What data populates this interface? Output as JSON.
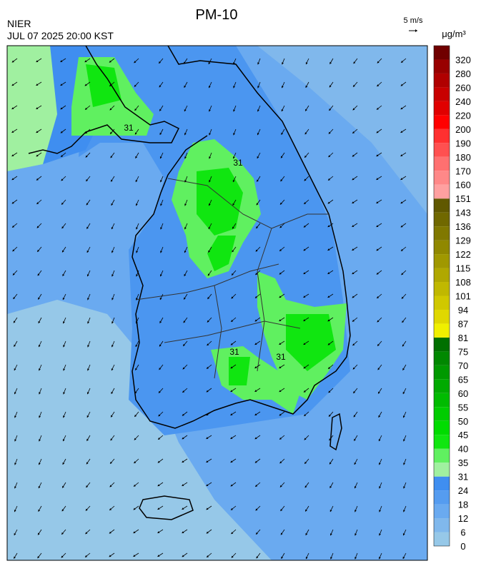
{
  "header": {
    "title": "PM-10",
    "agency": "NIER",
    "timestamp": "JUL 07 2025 20:00 KST"
  },
  "wind_scale": {
    "label": "5 m/s"
  },
  "colorbar": {
    "unit": "μg/m³",
    "levels": [
      0,
      6,
      12,
      18,
      24,
      31,
      35,
      40,
      45,
      50,
      55,
      60,
      65,
      70,
      75,
      81,
      87,
      94,
      101,
      108,
      115,
      122,
      129,
      136,
      143,
      151,
      160,
      170,
      180,
      190,
      200,
      220,
      240,
      260,
      280,
      320
    ],
    "colors": [
      "#96c8e8",
      "#80b8ec",
      "#6aaaf0",
      "#559cf0",
      "#3f8ef0",
      "#a0f0a0",
      "#60f060",
      "#10e610",
      "#00dc00",
      "#00cc00",
      "#00bb00",
      "#00aa00",
      "#009900",
      "#008800",
      "#007000",
      "#f0f000",
      "#e0d800",
      "#d0c800",
      "#c0b800",
      "#b0a800",
      "#a09800",
      "#908800",
      "#807800",
      "#706800",
      "#605800",
      "#ffa0a0",
      "#ff8888",
      "#ff7070",
      "#ff5050",
      "#ff3030",
      "#ff0000",
      "#e00000",
      "#c80000",
      "#b00000",
      "#980000",
      "#700000"
    ]
  },
  "contour_labels": [
    "31",
    "31",
    "31",
    "31"
  ]
}
